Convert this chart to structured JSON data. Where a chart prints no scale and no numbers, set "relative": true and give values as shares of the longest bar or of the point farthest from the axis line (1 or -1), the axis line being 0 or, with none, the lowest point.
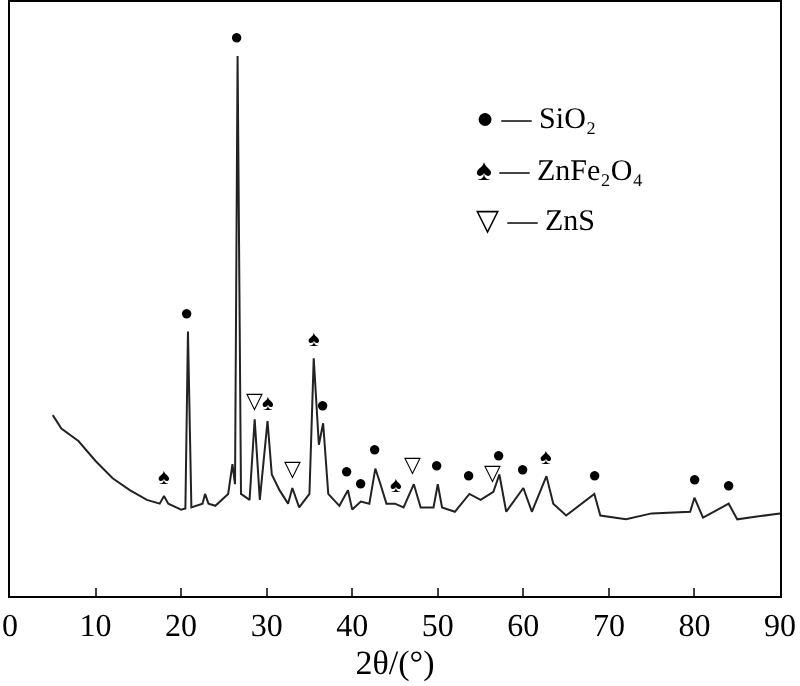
{
  "chart_data": {
    "type": "line",
    "relative": true,
    "xlabel": "2θ/(°)",
    "xlim": [
      0,
      90
    ],
    "xticks": [
      0,
      10,
      20,
      30,
      40,
      50,
      60,
      70,
      80,
      90
    ],
    "marker": "none",
    "line_style": "solid",
    "series": [
      {
        "color": "#222222",
        "x": [
          5,
          6,
          8,
          10,
          12,
          14,
          16,
          17.5,
          18,
          18.5,
          20,
          20.5,
          20.8,
          21.2,
          22.5,
          22.8,
          23.2,
          24,
          25.5,
          26,
          26.3,
          26.6,
          27,
          28,
          28.6,
          29.2,
          30.1,
          30.6,
          31.5,
          32.5,
          33,
          33.8,
          35,
          35.5,
          36.1,
          36.6,
          37.2,
          38.5,
          39.5,
          40,
          41,
          42,
          42.7,
          43.3,
          44,
          45,
          46,
          47.2,
          48,
          49.5,
          50,
          50.5,
          52,
          53.7,
          55,
          56.5,
          57.2,
          58,
          60,
          61,
          62.7,
          63.5,
          65,
          68.3,
          69,
          72,
          75,
          79.5,
          80,
          81,
          84,
          85,
          90
        ],
        "values": [
          0.335,
          0.31,
          0.287,
          0.25,
          0.218,
          0.196,
          0.178,
          0.171,
          0.185,
          0.171,
          0.16,
          0.162,
          0.49,
          0.164,
          0.171,
          0.189,
          0.171,
          0.167,
          0.189,
          0.244,
          0.207,
          1.0,
          0.189,
          0.178,
          0.327,
          0.178,
          0.324,
          0.225,
          0.196,
          0.171,
          0.2,
          0.164,
          0.189,
          0.44,
          0.28,
          0.32,
          0.189,
          0.167,
          0.196,
          0.16,
          0.175,
          0.171,
          0.236,
          0.207,
          0.171,
          0.171,
          0.164,
          0.207,
          0.164,
          0.164,
          0.207,
          0.164,
          0.156,
          0.189,
          0.178,
          0.193,
          0.225,
          0.156,
          0.2,
          0.156,
          0.222,
          0.171,
          0.149,
          0.189,
          0.149,
          0.142,
          0.153,
          0.156,
          0.182,
          0.145,
          0.171,
          0.142,
          0.153
        ]
      }
    ],
    "annotations": [
      {
        "text": "●",
        "x": 26.6,
        "y": 1.0
      },
      {
        "text": "●",
        "x": 20.8,
        "y": 0.49
      },
      {
        "text": "♠",
        "x": 18,
        "y": 0.185
      },
      {
        "text": "▽",
        "x": 28.6,
        "y": 0.327
      },
      {
        "text": "♠",
        "x": 30.1,
        "y": 0.324
      },
      {
        "text": "▽",
        "x": 33,
        "y": 0.2
      },
      {
        "text": "♠",
        "x": 35.5,
        "y": 0.44
      },
      {
        "text": "●",
        "x": 36.6,
        "y": 0.32
      },
      {
        "text": "●",
        "x": 39.5,
        "y": 0.196
      },
      {
        "text": "●",
        "x": 41,
        "y": 0.175
      },
      {
        "text": "●",
        "x": 42.7,
        "y": 0.236
      },
      {
        "text": "♠",
        "x": 45,
        "y": 0.171
      },
      {
        "text": "▽",
        "x": 47.2,
        "y": 0.207
      },
      {
        "text": "●",
        "x": 50,
        "y": 0.207
      },
      {
        "text": "●",
        "x": 53.7,
        "y": 0.189
      },
      {
        "text": "▽",
        "x": 56.5,
        "y": 0.193
      },
      {
        "text": "●",
        "x": 57.2,
        "y": 0.225
      },
      {
        "text": "●",
        "x": 60,
        "y": 0.2
      },
      {
        "text": "♠",
        "x": 62.7,
        "y": 0.222
      },
      {
        "text": "●",
        "x": 68.3,
        "y": 0.189
      },
      {
        "text": "●",
        "x": 80,
        "y": 0.182
      },
      {
        "text": "●",
        "x": 84,
        "y": 0.171
      },
      "● — SiO₂",
      "♠ — ZnFe₂O₄",
      "▽ — ZnS"
    ]
  }
}
